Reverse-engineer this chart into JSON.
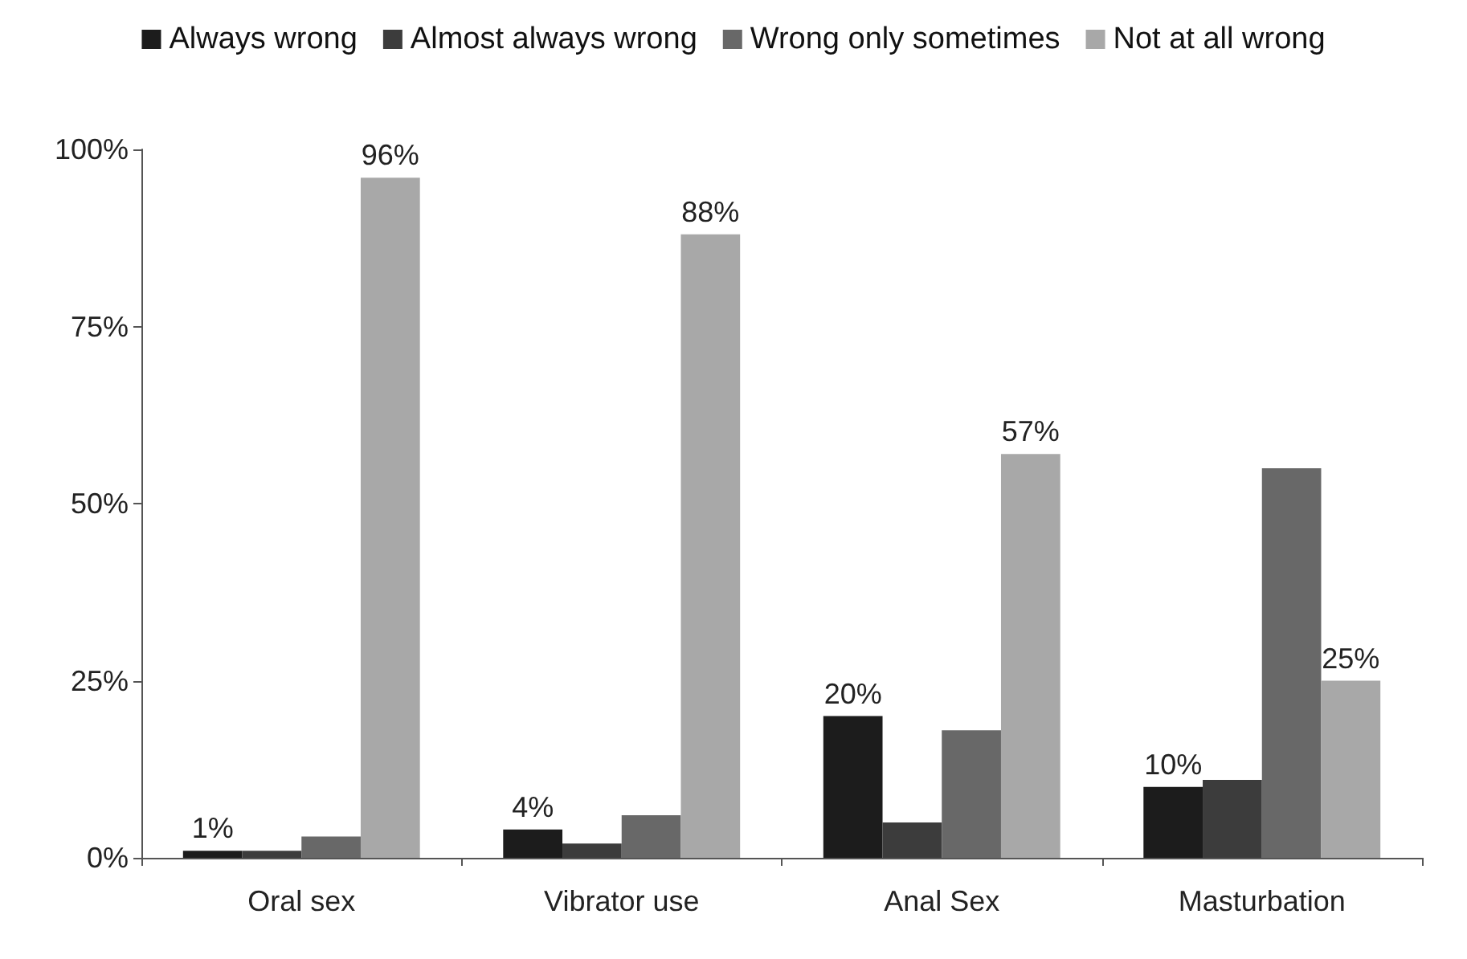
{
  "chart_data": {
    "type": "bar",
    "categories": [
      "Oral sex",
      "Vibrator use",
      "Anal Sex",
      "Masturbation"
    ],
    "series": [
      {
        "name": "Always wrong",
        "color": "#1c1c1c",
        "values": [
          1,
          4,
          20,
          10
        ],
        "value_labels": [
          "1%",
          "4%",
          "20%",
          "10%"
        ]
      },
      {
        "name": "Almost always wrong",
        "color": "#3c3c3c",
        "values": [
          1,
          2,
          5,
          11
        ]
      },
      {
        "name": "Wrong only sometimes",
        "color": "#686868",
        "values": [
          3,
          6,
          18,
          55
        ]
      },
      {
        "name": "Not at all wrong",
        "color": "#a8a8a8",
        "values": [
          96,
          88,
          57,
          25
        ],
        "value_labels": [
          "96%",
          "88%",
          "57%",
          "25%"
        ]
      }
    ],
    "ylim": [
      0,
      100
    ],
    "yticks": [
      {
        "value": 0,
        "label": "0%"
      },
      {
        "value": 25,
        "label": "25%"
      },
      {
        "value": 50,
        "label": "50%"
      },
      {
        "value": 75,
        "label": "75%"
      },
      {
        "value": 100,
        "label": "100%"
      }
    ],
    "grid": false,
    "legend": "top"
  }
}
